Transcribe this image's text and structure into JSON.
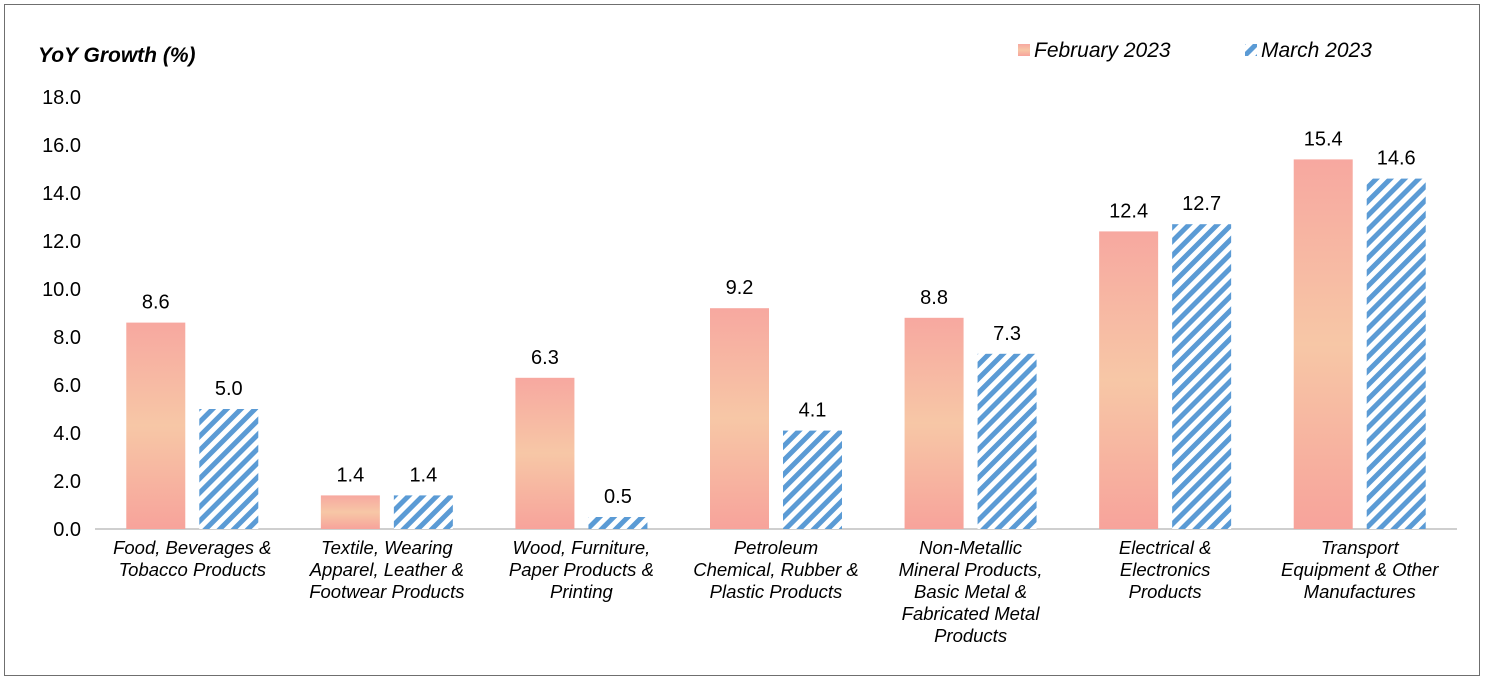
{
  "chart_data": {
    "type": "bar",
    "ylabel": "YoY Growth (%)",
    "ylim": [
      0,
      18
    ],
    "yticks": [
      "0.0",
      "2.0",
      "4.0",
      "6.0",
      "8.0",
      "10.0",
      "12.0",
      "14.0",
      "16.0",
      "18.0"
    ],
    "legend_position": "top-right",
    "categories": [
      [
        "Food, Beverages &",
        "Tobacco Products"
      ],
      [
        "Textile, Wearing",
        "Apparel, Leather &",
        "Footwear Products"
      ],
      [
        "Wood, Furniture,",
        "Paper Products &",
        "Printing"
      ],
      [
        "Petroleum",
        "Chemical, Rubber &",
        "Plastic Products"
      ],
      [
        "Non-Metallic",
        "Mineral Products,",
        "Basic Metal &",
        "Fabricated Metal",
        "Products"
      ],
      [
        "Electrical &",
        "Electronics",
        "Products"
      ],
      [
        "Transport",
        "Equipment & Other",
        "Manufactures"
      ]
    ],
    "series": [
      {
        "name": "February 2023",
        "color": "#f4a49a",
        "values": [
          8.6,
          1.4,
          6.3,
          9.2,
          8.8,
          12.4,
          15.4
        ],
        "labels": [
          "8.6",
          "1.4",
          "6.3",
          "9.2",
          "8.8",
          "12.4",
          "15.4"
        ]
      },
      {
        "name": "March 2023",
        "color": "#5b9bd5",
        "values": [
          5.0,
          1.4,
          0.5,
          4.1,
          7.3,
          12.7,
          14.6
        ],
        "labels": [
          "5.0",
          "1.4",
          "0.5",
          "4.1",
          "7.3",
          "12.7",
          "14.6"
        ]
      }
    ],
    "grid": false
  }
}
